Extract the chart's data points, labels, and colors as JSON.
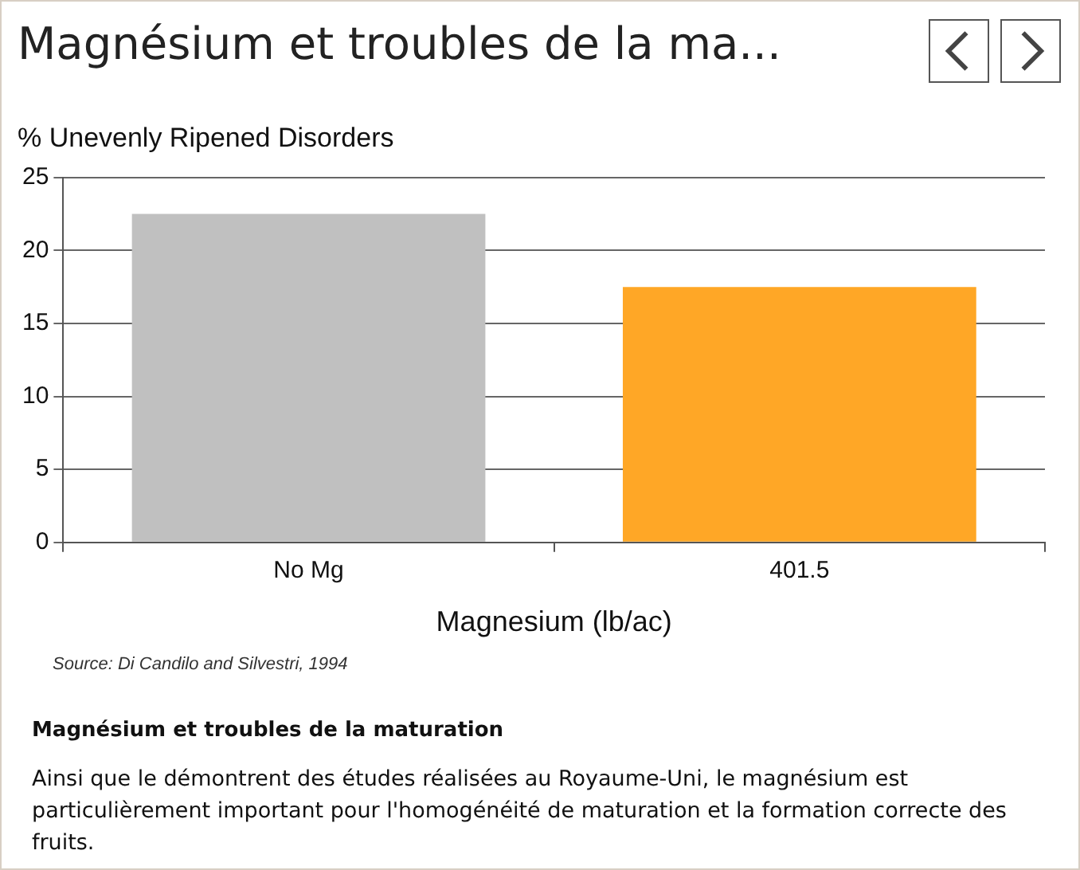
{
  "chart_data": {
    "type": "bar",
    "title": "Magnésium et troubles de la ma...",
    "ylabel": "% Unevenly Ripened Disorders",
    "xlabel": "Magnesium (lb/ac)",
    "categories": [
      "No Mg",
      "401.5"
    ],
    "values": [
      22.5,
      17.5
    ],
    "colors": [
      "#c0c0c0",
      "#ffa726"
    ],
    "ylim": [
      0,
      25
    ],
    "yticks": [
      0,
      5,
      10,
      15,
      20,
      25
    ],
    "grid": "y",
    "legend": false,
    "annotations": [
      "Source: Di Candilo and Silvestri, 1994",
      "Magnésium et troubles de la maturation",
      "Ainsi que le démontrent des études réalisées au Royaume-Uni, le magnésium est particulièrement important pour l'homogénéité de maturation et la formation correcte des fruits."
    ]
  }
}
